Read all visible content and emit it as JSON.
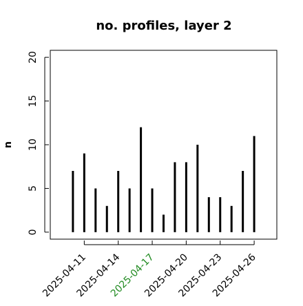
{
  "chart_data": {
    "type": "bar",
    "title": "no. profiles, layer 2",
    "y_label": "n",
    "x": [
      "2025-04-10",
      "2025-04-11",
      "2025-04-12",
      "2025-04-13",
      "2025-04-14",
      "2025-04-15",
      "2025-04-16",
      "2025-04-17",
      "2025-04-18",
      "2025-04-19",
      "2025-04-20",
      "2025-04-21",
      "2025-04-22",
      "2025-04-23",
      "2025-04-24",
      "2025-04-25",
      "2025-04-26"
    ],
    "values": [
      7,
      9,
      5,
      3,
      7,
      5,
      12,
      5,
      2,
      8,
      8,
      10,
      4,
      4,
      3,
      7,
      11
    ],
    "color": "#000000",
    "xlim": [
      "2025-04-08",
      "2025-04-28"
    ],
    "xticks": [
      "2025-04-11",
      "2025-04-14",
      "2025-04-17",
      "2025-04-20",
      "2025-04-23",
      "2025-04-26"
    ],
    "xtick_colors": [
      "#000000",
      "#000000",
      "#228b22",
      "#000000",
      "#000000",
      "#000000"
    ],
    "ylim": [
      -0.8,
      20.8
    ],
    "yticks": [
      0,
      5,
      10,
      15,
      20
    ]
  }
}
